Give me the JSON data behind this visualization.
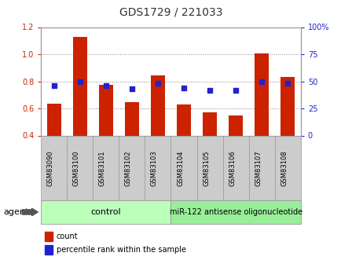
{
  "title": "GDS1729 / 221033",
  "samples": [
    "GSM83090",
    "GSM83100",
    "GSM83101",
    "GSM83102",
    "GSM83103",
    "GSM83104",
    "GSM83105",
    "GSM83106",
    "GSM83107",
    "GSM83108"
  ],
  "count_values": [
    0.635,
    1.13,
    0.775,
    0.645,
    0.845,
    0.63,
    0.57,
    0.545,
    1.005,
    0.83
  ],
  "percentile_values": [
    46,
    50,
    46,
    43,
    48,
    44,
    42,
    42,
    50,
    48
  ],
  "ylim_left": [
    0.4,
    1.2
  ],
  "ylim_right": [
    0,
    100
  ],
  "yticks_left": [
    0.4,
    0.6,
    0.8,
    1.0,
    1.2
  ],
  "yticks_right": [
    0,
    25,
    50,
    75,
    100
  ],
  "ytick_labels_right": [
    "0",
    "25",
    "50",
    "75",
    "100%"
  ],
  "bar_color": "#CC2200",
  "dot_color": "#2222CC",
  "bar_bottom": 0.4,
  "control_label": "control",
  "treatment_label": "miR-122 antisense oligonucleotide",
  "control_color": "#BBFFBB",
  "treatment_color": "#99EE99",
  "agent_label": "agent",
  "legend_count": "count",
  "legend_percentile": "percentile rank within the sample",
  "grid_color": "#888888",
  "n_control": 5,
  "n_treatment": 5,
  "title_color": "#333333",
  "left_tick_color": "#CC2200",
  "right_tick_color": "#2222CC",
  "tick_label_bg": "#CCCCCC",
  "spine_color": "#999999"
}
